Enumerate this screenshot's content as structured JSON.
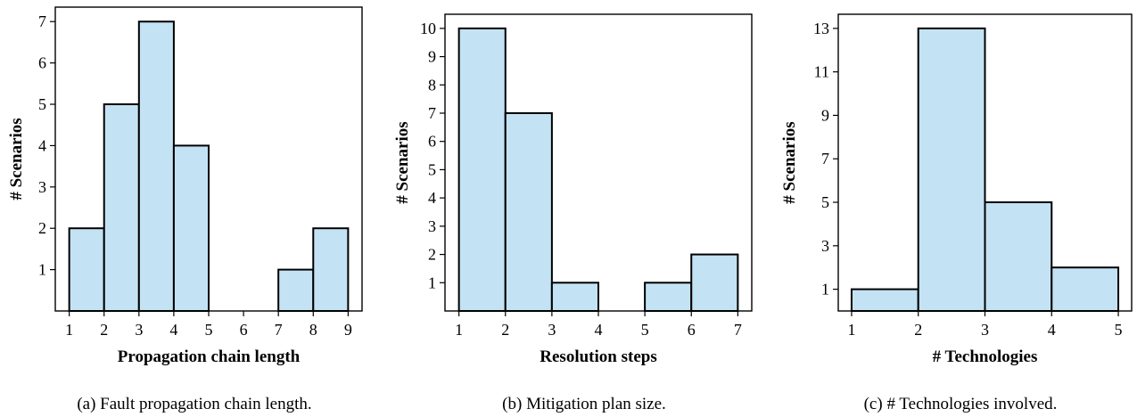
{
  "chart_data": [
    {
      "type": "bar",
      "xlabel": "Propagation chain length",
      "ylabel": "# Scenarios",
      "caption": "(a) Fault propagation chain length.",
      "bin_edges": [
        1,
        2,
        3,
        4,
        5,
        6,
        7,
        8,
        9
      ],
      "values": [
        2,
        5,
        7,
        4,
        0,
        0,
        1,
        2
      ],
      "xticks": [
        1,
        2,
        3,
        4,
        5,
        6,
        7,
        8,
        9
      ],
      "yticks": [
        1,
        2,
        3,
        4,
        5,
        6,
        7
      ],
      "xlim": [
        0.6,
        9.4
      ],
      "ylim": [
        0,
        7.35
      ],
      "bar_color": "#c3e3f5",
      "edge_color": "#000000"
    },
    {
      "type": "bar",
      "xlabel": "Resolution steps",
      "ylabel": "# Scenarios",
      "caption": "(b) Mitigation plan size.",
      "bin_edges": [
        1,
        2,
        3,
        4,
        5,
        6,
        7
      ],
      "values": [
        10,
        7,
        1,
        0,
        1,
        2
      ],
      "xticks": [
        1,
        2,
        3,
        4,
        5,
        6,
        7
      ],
      "yticks": [
        1,
        2,
        3,
        4,
        5,
        6,
        7,
        8,
        9,
        10
      ],
      "xlim": [
        0.7,
        7.3
      ],
      "ylim": [
        0,
        10.5
      ],
      "bar_color": "#c3e3f5",
      "edge_color": "#000000"
    },
    {
      "type": "bar",
      "xlabel": "# Technologies",
      "ylabel": "# Scenarios",
      "caption": "(c) # Technologies involved.",
      "bin_edges": [
        1,
        2,
        3,
        4,
        5
      ],
      "values": [
        1,
        13,
        5,
        2
      ],
      "xticks": [
        1,
        2,
        3,
        4,
        5
      ],
      "yticks": [
        1,
        3,
        5,
        7,
        9,
        11,
        13
      ],
      "xlim": [
        0.8,
        5.2
      ],
      "ylim": [
        0,
        13.65
      ],
      "bar_color": "#c3e3f5",
      "edge_color": "#000000"
    }
  ]
}
